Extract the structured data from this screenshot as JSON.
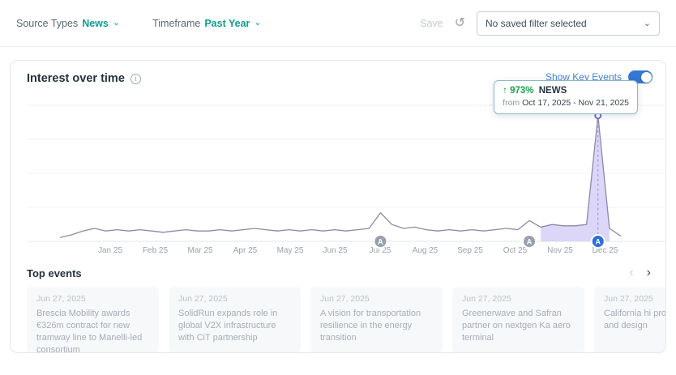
{
  "filter_bar": {
    "source_types_label": "Source Types",
    "source_types_value": "News",
    "timeframe_label": "Timeframe",
    "timeframe_value": "Past Year",
    "save_label": "Save",
    "saved_filter_value": "No saved filter selected"
  },
  "icons": {
    "chevron_down": "⌄",
    "undo": "↺",
    "info": "i",
    "prev": "‹",
    "next": "›",
    "arrow_up": "↑"
  },
  "chart_card": {
    "title": "Interest over time",
    "show_key_events_label": "Show Key Events",
    "tooltip": {
      "percent": "973%",
      "source": "NEWS",
      "from_label": "from",
      "range": "Oct 17, 2025 - Nov 21, 2025"
    }
  },
  "chart_data": {
    "type": "line",
    "title": "Interest over time",
    "x_labels": [
      "Jan 25",
      "Feb 25",
      "Mar 25",
      "Apr 25",
      "May 25",
      "Jun 25",
      "Jul 25",
      "Aug 25",
      "Sep 25",
      "Oct 25",
      "Nov 25",
      "Dec 25"
    ],
    "values": [
      3,
      5,
      8,
      10,
      8,
      9,
      8,
      9,
      8,
      7,
      8,
      9,
      8,
      8,
      9,
      8,
      9,
      10,
      9,
      8,
      9,
      8,
      9,
      8,
      9,
      8,
      9,
      10,
      22,
      13,
      10,
      11,
      9,
      8,
      9,
      8,
      9,
      8,
      9,
      10,
      9,
      16,
      11,
      13,
      12,
      12,
      13,
      97,
      10,
      4
    ],
    "ylim": [
      0,
      100
    ],
    "grid": true,
    "legend": "none",
    "line_color": "#8e87a8",
    "highlight": {
      "start_index": 42,
      "end_index": 48,
      "fill": "#cdc6f5"
    },
    "peak": {
      "index": 47,
      "value": 97
    },
    "event_markers": [
      {
        "index": 28,
        "type": "gray",
        "label": "A"
      },
      {
        "index": 41,
        "type": "gray",
        "label": "A"
      },
      {
        "index": 47,
        "type": "blue",
        "label": "A"
      }
    ]
  },
  "top_events": {
    "title": "Top events",
    "cards": [
      {
        "date": "Jun 27, 2025",
        "title": "Brescia Mobility awards €326m contract for new tramway line to Manelli-led consortium"
      },
      {
        "date": "Jun 27, 2025",
        "title": "SolidRun expands role in global V2X infrastructure with CiT partnership"
      },
      {
        "date": "Jun 27, 2025",
        "title": "A vision for transportation resilience in the energy transition"
      },
      {
        "date": "Jun 27, 2025",
        "title": "Greenerwave and Safran partner on nextgen Ka aero terminal"
      },
      {
        "date": "Jun 27, 2025",
        "title": "California hi project to re and design"
      }
    ]
  },
  "colors": {
    "accent_teal": "#0f9d8f",
    "accent_blue": "#3577d4",
    "positive_green": "#17a24a",
    "highlight_purple": "#cdc6f5",
    "marker_gray": "#97a0ad",
    "marker_blue": "#2c6fdd"
  }
}
